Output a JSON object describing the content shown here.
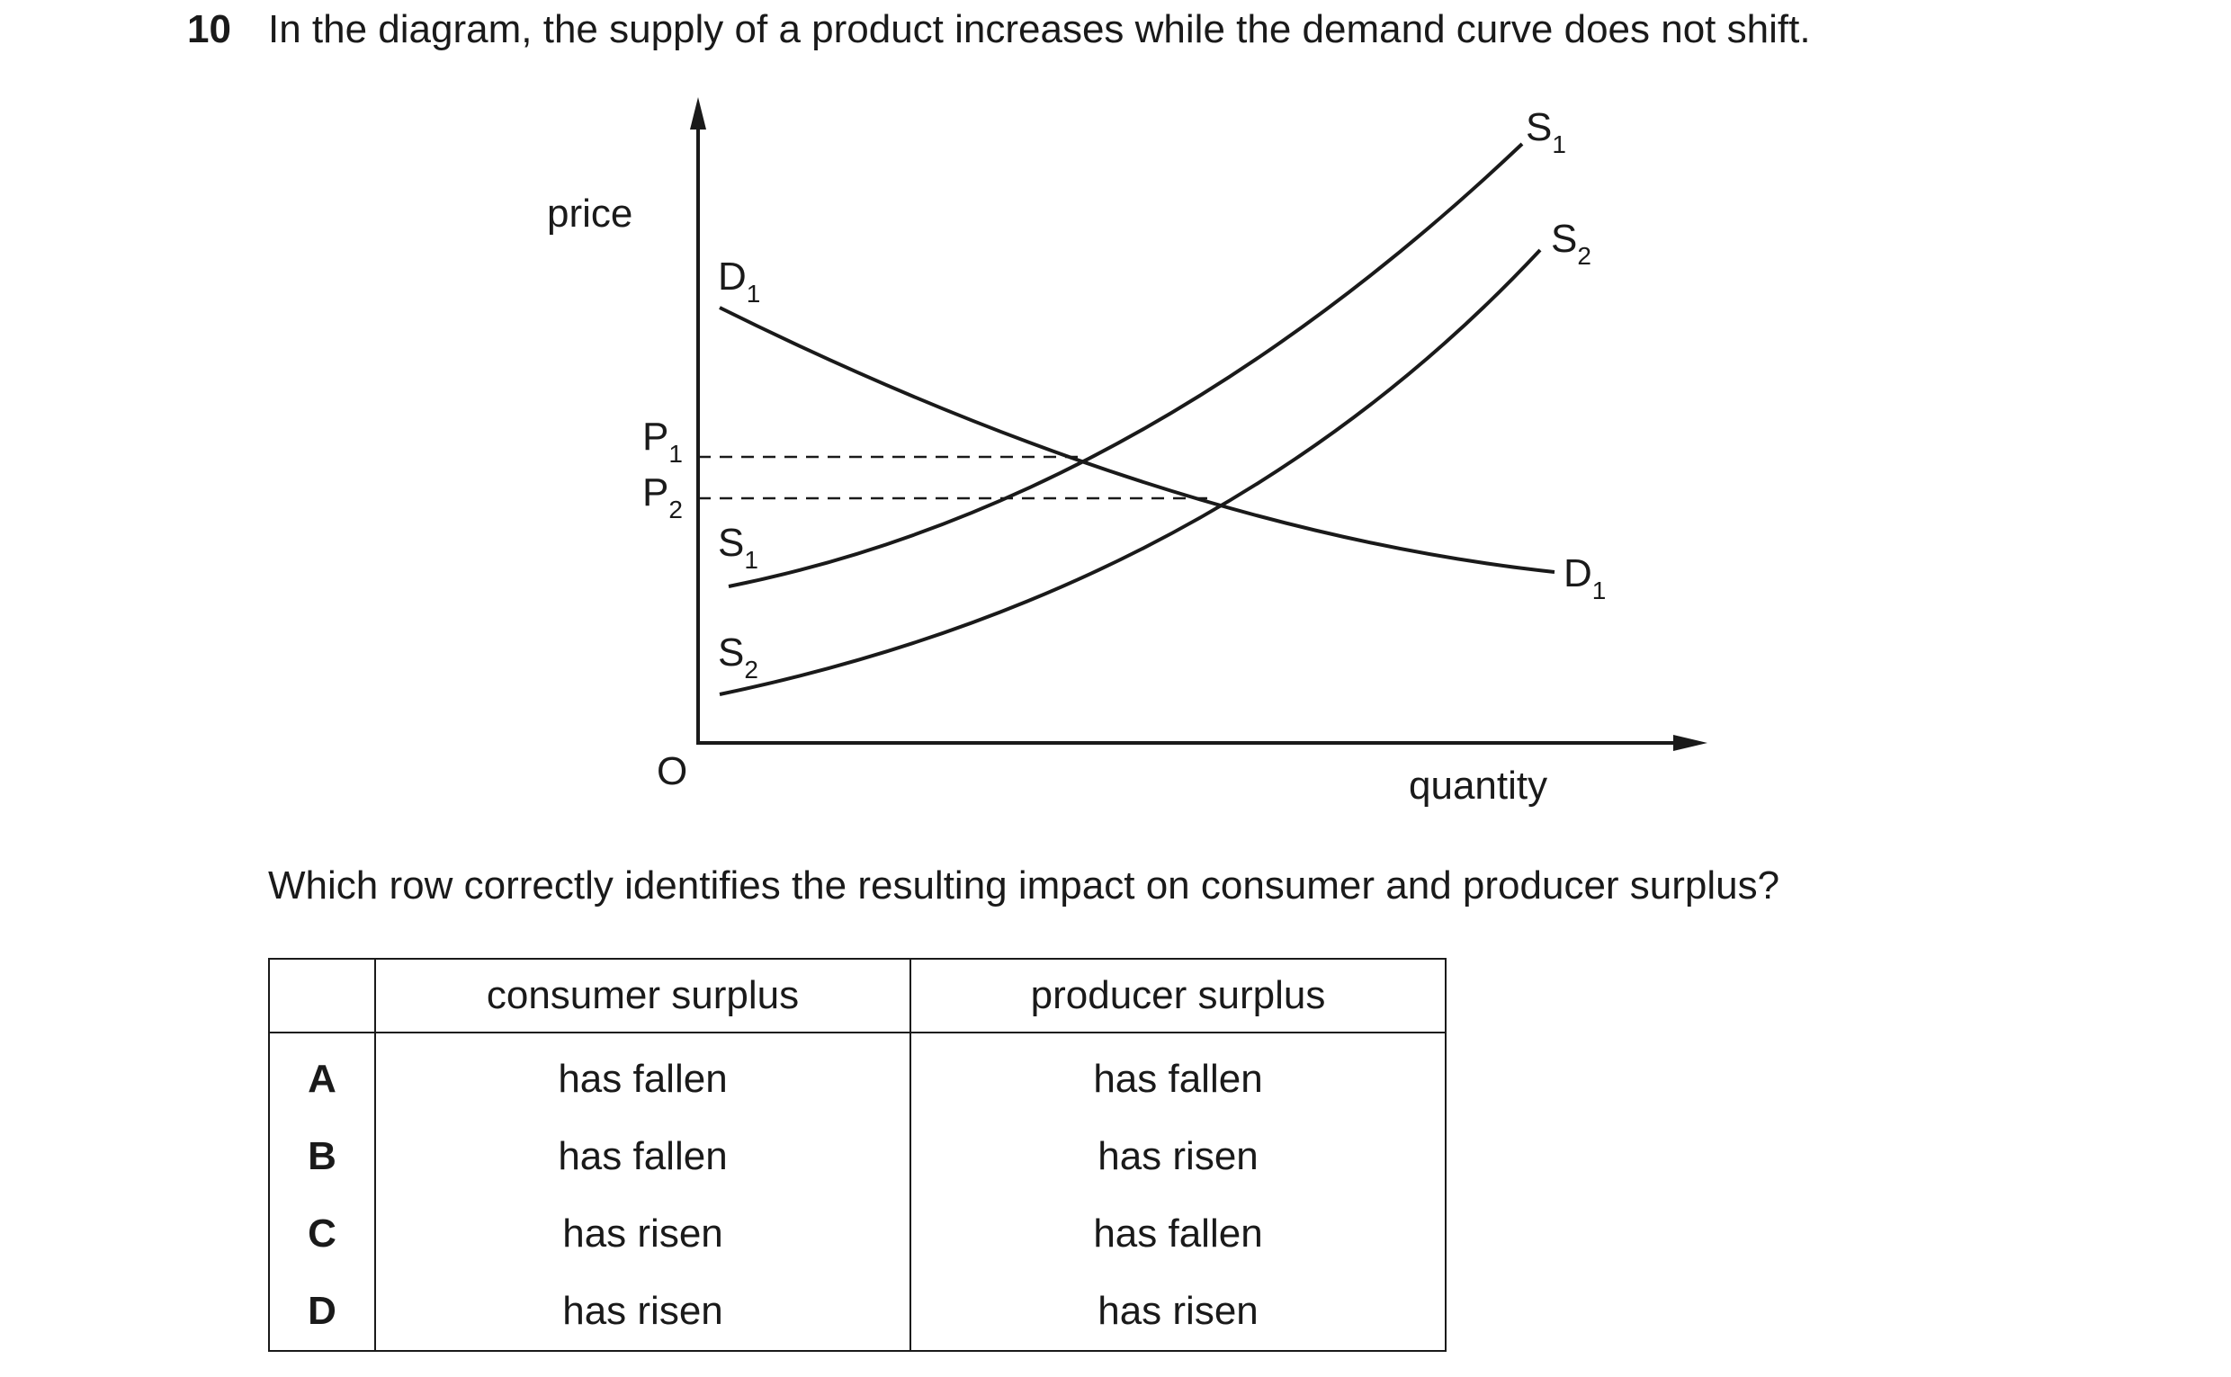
{
  "question": {
    "number": "10",
    "text": "In the diagram, the supply of a product increases while the demand curve does not shift.",
    "prompt": "Which row correctly identifies the resulting impact on consumer and producer surplus?"
  },
  "diagram": {
    "y_axis_label": "price",
    "x_axis_label": "quantity",
    "origin_label": "O",
    "price_labels": [
      {
        "main": "P",
        "sub": "1"
      },
      {
        "main": "P",
        "sub": "2"
      }
    ],
    "curves": {
      "demand": {
        "main": "D",
        "sub": "1"
      },
      "supply_original": {
        "main": "S",
        "sub": "1"
      },
      "supply_new": {
        "main": "S",
        "sub": "2"
      }
    }
  },
  "table": {
    "headers": [
      "",
      "consumer surplus",
      "producer surplus"
    ],
    "rows": [
      {
        "option": "A",
        "consumer": "has fallen",
        "producer": "has fallen"
      },
      {
        "option": "B",
        "consumer": "has fallen",
        "producer": "has risen"
      },
      {
        "option": "C",
        "consumer": "has risen",
        "producer": "has fallen"
      },
      {
        "option": "D",
        "consumer": "has risen",
        "producer": "has risen"
      }
    ]
  }
}
